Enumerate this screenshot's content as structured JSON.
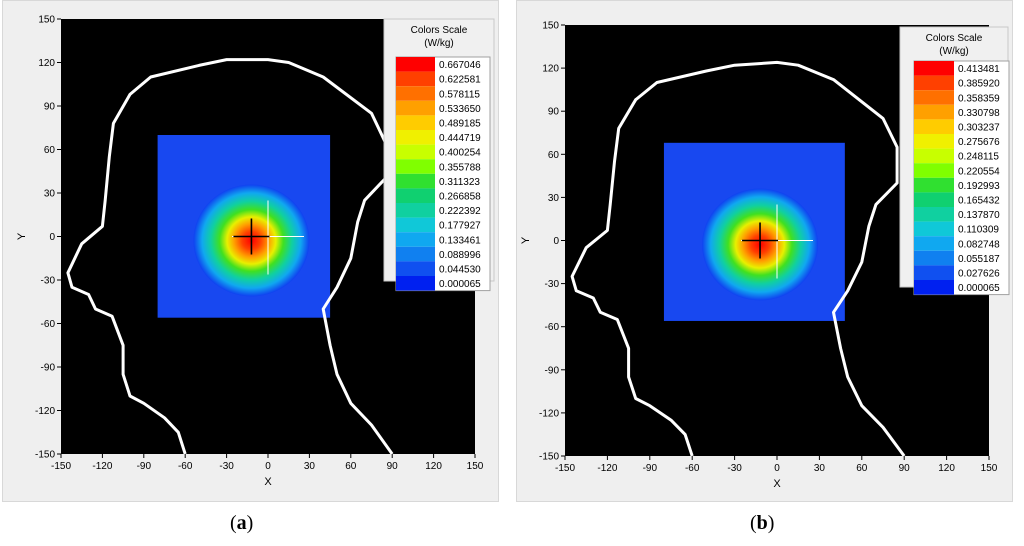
{
  "chart_data": [
    {
      "type": "heatmap",
      "caption_label": "a",
      "xlabel": "X",
      "ylabel": "Y",
      "xlim": [
        -150,
        150
      ],
      "ylim": [
        -150,
        150
      ],
      "x_ticks": [
        -150,
        -120,
        -90,
        -60,
        -30,
        0,
        30,
        60,
        90,
        120,
        150
      ],
      "y_ticks": [
        150,
        120,
        90,
        60,
        30,
        0,
        -30,
        -60,
        -90,
        -120,
        -150
      ],
      "scan_area": {
        "x": [
          -80,
          45
        ],
        "y": [
          -56,
          70
        ]
      },
      "peak": {
        "x": -12,
        "y": 0
      },
      "crosshair_center": {
        "x": 0,
        "y": 0
      },
      "legend": {
        "title_line1": "Colors Scale",
        "title_line2": "(W/kg)",
        "values": [
          "0.667046",
          "0.622581",
          "0.578115",
          "0.533650",
          "0.489185",
          "0.444719",
          "0.400254",
          "0.355788",
          "0.311323",
          "0.266858",
          "0.222392",
          "0.177927",
          "0.133461",
          "0.088996",
          "0.044530",
          "0.000065"
        ]
      },
      "head_outline": [
        [
          -60,
          -150
        ],
        [
          -65,
          -135
        ],
        [
          -75,
          -125
        ],
        [
          -90,
          -115
        ],
        [
          -100,
          -110
        ],
        [
          -105,
          -95
        ],
        [
          -105,
          -75
        ],
        [
          -113,
          -55
        ],
        [
          -125,
          -50
        ],
        [
          -130,
          -40
        ],
        [
          -142,
          -35
        ],
        [
          -145,
          -25
        ],
        [
          -135,
          -5
        ],
        [
          -120,
          7
        ],
        [
          -118,
          25
        ],
        [
          -115,
          55
        ],
        [
          -112,
          78
        ],
        [
          -100,
          98
        ],
        [
          -85,
          110
        ],
        [
          -50,
          118
        ],
        [
          -30,
          122
        ],
        [
          0,
          122
        ],
        [
          15,
          120
        ],
        [
          40,
          110
        ],
        [
          75,
          85
        ],
        [
          85,
          65
        ],
        [
          85,
          40
        ],
        [
          70,
          25
        ],
        [
          65,
          10
        ],
        [
          60,
          -15
        ],
        [
          50,
          -35
        ],
        [
          40,
          -50
        ],
        [
          45,
          -75
        ],
        [
          50,
          -95
        ],
        [
          60,
          -115
        ],
        [
          75,
          -130
        ],
        [
          90,
          -150
        ]
      ]
    },
    {
      "type": "heatmap",
      "caption_label": "b",
      "xlabel": "X",
      "ylabel": "Y",
      "xlim": [
        -150,
        150
      ],
      "ylim": [
        -150,
        150
      ],
      "x_ticks": [
        -150,
        -120,
        -90,
        -60,
        -30,
        0,
        30,
        60,
        90,
        120,
        150
      ],
      "y_ticks": [
        150,
        120,
        90,
        60,
        30,
        0,
        -30,
        -60,
        -90,
        -120,
        -150
      ],
      "scan_area": {
        "x": [
          -80,
          48
        ],
        "y": [
          -56,
          68
        ]
      },
      "peak": {
        "x": -12,
        "y": 0
      },
      "crosshair_center": {
        "x": 0,
        "y": 0
      },
      "legend": {
        "title_line1": "Colors Scale",
        "title_line2": "(W/kg)",
        "values": [
          "0.413481",
          "0.385920",
          "0.358359",
          "0.330798",
          "0.303237",
          "0.275676",
          "0.248115",
          "0.220554",
          "0.192993",
          "0.165432",
          "0.137870",
          "0.110309",
          "0.082748",
          "0.055187",
          "0.027626",
          "0.000065"
        ]
      },
      "head_outline": [
        [
          -60,
          -150
        ],
        [
          -65,
          -135
        ],
        [
          -75,
          -125
        ],
        [
          -90,
          -115
        ],
        [
          -100,
          -110
        ],
        [
          -105,
          -95
        ],
        [
          -105,
          -75
        ],
        [
          -113,
          -55
        ],
        [
          -125,
          -50
        ],
        [
          -130,
          -40
        ],
        [
          -142,
          -35
        ],
        [
          -145,
          -25
        ],
        [
          -135,
          -5
        ],
        [
          -120,
          7
        ],
        [
          -118,
          25
        ],
        [
          -115,
          55
        ],
        [
          -112,
          78
        ],
        [
          -100,
          98
        ],
        [
          -85,
          110
        ],
        [
          -50,
          118
        ],
        [
          -30,
          122
        ],
        [
          0,
          124
        ],
        [
          15,
          122
        ],
        [
          40,
          112
        ],
        [
          75,
          85
        ],
        [
          85,
          65
        ],
        [
          85,
          40
        ],
        [
          70,
          25
        ],
        [
          65,
          10
        ],
        [
          60,
          -15
        ],
        [
          50,
          -35
        ],
        [
          40,
          -50
        ],
        [
          45,
          -75
        ],
        [
          50,
          -95
        ],
        [
          60,
          -115
        ],
        [
          75,
          -130
        ],
        [
          90,
          -150
        ]
      ]
    }
  ],
  "colorscale": [
    "#ff0000",
    "#ff4000",
    "#ff7000",
    "#ffa000",
    "#ffcc00",
    "#f0f000",
    "#c8ff00",
    "#80ff00",
    "#30e030",
    "#10d070",
    "#10d0a0",
    "#10c8d8",
    "#10a8f0",
    "#1080f0",
    "#1050f0",
    "#0020f0"
  ]
}
